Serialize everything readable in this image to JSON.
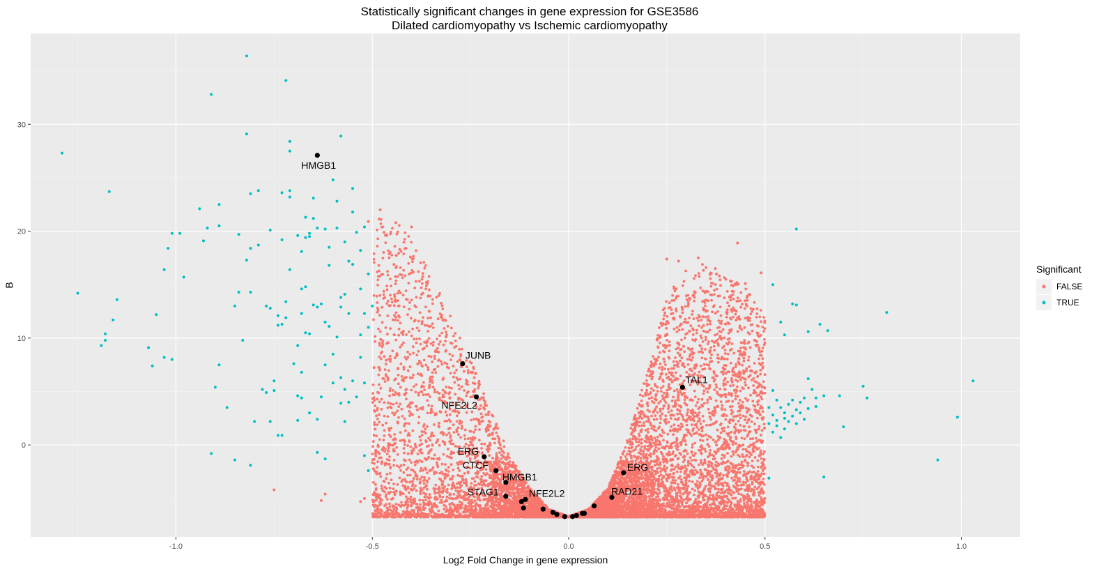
{
  "chart_data": {
    "type": "scatter",
    "title": "Statistically significant changes in gene expression for GSE3586",
    "subtitle": "Dilated cardiomyopathy vs Ischemic cardiomyopathy",
    "xlabel": "Log2 Fold Change in gene expression",
    "ylabel": "B",
    "xlim": [
      -1.37,
      1.15
    ],
    "ylim": [
      -8.6,
      38.5
    ],
    "x_ticks": [
      -1.0,
      -0.5,
      0.0,
      0.5,
      1.0
    ],
    "x_tick_labels": [
      "-1.0",
      "-0.5",
      "0.0",
      "0.5",
      "1.0"
    ],
    "y_ticks": [
      0,
      10,
      20,
      30
    ],
    "y_tick_labels": [
      "0",
      "10",
      "20",
      "30"
    ],
    "grid": true,
    "background": "#ebebeb",
    "legend": {
      "title": "Significant",
      "placement": "right",
      "entries": [
        {
          "label": "FALSE",
          "color": "#f8766d"
        },
        {
          "label": "TRUE",
          "color": "#00bfc4"
        }
      ]
    },
    "series": [
      {
        "name": "TRUE",
        "color": "#00bfc4",
        "points": [
          [
            -1.29,
            27.3
          ],
          [
            -1.25,
            14.2
          ],
          [
            -1.19,
            9.3
          ],
          [
            -1.18,
            10.4
          ],
          [
            -1.18,
            9.8
          ],
          [
            -1.17,
            23.7
          ],
          [
            -1.16,
            11.7
          ],
          [
            -1.15,
            13.6
          ],
          [
            -1.07,
            9.1
          ],
          [
            -1.06,
            7.4
          ],
          [
            -1.05,
            12.2
          ],
          [
            -1.03,
            16.4
          ],
          [
            -1.03,
            8.2
          ],
          [
            -1.02,
            18.4
          ],
          [
            -1.01,
            19.8
          ],
          [
            -1.01,
            8.0
          ],
          [
            -0.99,
            19.8
          ],
          [
            -0.98,
            15.7
          ],
          [
            -0.94,
            22.1
          ],
          [
            -0.93,
            19.1
          ],
          [
            -0.92,
            20.3
          ],
          [
            -0.91,
            32.8
          ],
          [
            -0.91,
            -0.8
          ],
          [
            -0.9,
            5.4
          ],
          [
            -0.89,
            22.5
          ],
          [
            -0.89,
            20.5
          ],
          [
            -0.89,
            7.5
          ],
          [
            -0.87,
            3.5
          ],
          [
            -0.85,
            13.0
          ],
          [
            -0.85,
            -1.4
          ],
          [
            -0.84,
            14.3
          ],
          [
            -0.84,
            19.7
          ],
          [
            -0.83,
            9.8
          ],
          [
            -0.82,
            17.3
          ],
          [
            -0.82,
            29.1
          ],
          [
            -0.81,
            23.5
          ],
          [
            -0.81,
            18.4
          ],
          [
            -0.81,
            14.3
          ],
          [
            -0.81,
            -1.9
          ],
          [
            -0.8,
            2.2
          ],
          [
            -0.79,
            18.7
          ],
          [
            -0.79,
            23.8
          ],
          [
            -0.78,
            5.2
          ],
          [
            -0.77,
            13.0
          ],
          [
            -0.77,
            4.9
          ],
          [
            -0.76,
            20.1
          ],
          [
            -0.76,
            12.8
          ],
          [
            -0.76,
            2.2
          ],
          [
            -0.75,
            6.0
          ],
          [
            -0.75,
            5.1
          ],
          [
            -0.74,
            12.1
          ],
          [
            -0.74,
            11.2
          ],
          [
            -0.74,
            0.9
          ],
          [
            -0.73,
            23.6
          ],
          [
            -0.73,
            19.2
          ],
          [
            -0.73,
            11.3
          ],
          [
            -0.73,
            0.9
          ],
          [
            -0.72,
            34.1
          ],
          [
            -0.72,
            13.4
          ],
          [
            -0.72,
            11.9
          ],
          [
            -0.71,
            27.5
          ],
          [
            -0.71,
            28.4
          ],
          [
            -0.71,
            23.8
          ],
          [
            -0.71,
            23.2
          ],
          [
            -0.71,
            16.4
          ],
          [
            -0.7,
            7.6
          ],
          [
            -0.69,
            19.6
          ],
          [
            -0.69,
            9.3
          ],
          [
            -0.69,
            4.6
          ],
          [
            -0.69,
            2.3
          ],
          [
            -0.68,
            14.6
          ],
          [
            -0.68,
            18.1
          ],
          [
            -0.68,
            12.3
          ],
          [
            -0.68,
            6.8
          ],
          [
            -0.68,
            4.4
          ],
          [
            -0.67,
            21.3
          ],
          [
            -0.67,
            19.4
          ],
          [
            -0.67,
            14.8
          ],
          [
            -0.67,
            10.5
          ],
          [
            -0.66,
            19.5
          ],
          [
            -0.66,
            10.4
          ],
          [
            -0.66,
            3.0
          ],
          [
            -0.65,
            23.1
          ],
          [
            -0.65,
            21.2
          ],
          [
            -0.65,
            13.1
          ],
          [
            -0.64,
            20.3
          ],
          [
            -0.64,
            2.4
          ],
          [
            -0.64,
            -0.7
          ],
          [
            -0.64,
            12.9
          ],
          [
            -0.63,
            4.5
          ],
          [
            -0.63,
            13.2
          ],
          [
            -0.62,
            11.5
          ],
          [
            -0.62,
            7.5
          ],
          [
            -0.62,
            20.2
          ],
          [
            -0.62,
            -1.3
          ],
          [
            -0.61,
            18.5
          ],
          [
            -0.61,
            16.8
          ],
          [
            -0.61,
            11.1
          ],
          [
            -0.6,
            8.5
          ],
          [
            -0.6,
            5.8
          ],
          [
            -0.59,
            22.8
          ],
          [
            -0.59,
            10.1
          ],
          [
            -0.59,
            20.3
          ],
          [
            -0.58,
            3.9
          ],
          [
            -0.58,
            12.9
          ],
          [
            -0.58,
            6.3
          ],
          [
            -0.58,
            13.8
          ],
          [
            -0.57,
            5.2
          ],
          [
            -0.57,
            19.0
          ],
          [
            -0.57,
            14.1
          ],
          [
            -0.57,
            2.2
          ],
          [
            -0.56,
            4.0
          ],
          [
            -0.56,
            12.3
          ],
          [
            -0.56,
            17.2
          ],
          [
            -0.55,
            21.8
          ],
          [
            -0.55,
            16.9
          ],
          [
            -0.55,
            6.0
          ],
          [
            -0.55,
            24.0
          ],
          [
            -0.54,
            4.5
          ],
          [
            -0.54,
            19.9
          ],
          [
            -0.53,
            10.3
          ],
          [
            -0.53,
            8.2
          ],
          [
            -0.53,
            14.6
          ],
          [
            -0.53,
            18.2
          ],
          [
            -0.52,
            12.3
          ],
          [
            -0.52,
            20.4
          ],
          [
            -0.52,
            5.8
          ],
          [
            -0.52,
            -1.0
          ],
          [
            -0.51,
            11.0
          ],
          [
            -0.51,
            16.0
          ],
          [
            -0.51,
            -2.4
          ],
          [
            -0.5,
            13.0
          ],
          [
            -0.6,
            24.8
          ],
          [
            -0.58,
            28.9
          ],
          [
            -0.82,
            36.4
          ],
          [
            -0.66,
            19.8
          ],
          [
            0.51,
            3.5
          ],
          [
            0.51,
            2.0
          ],
          [
            0.51,
            -3.1
          ],
          [
            0.52,
            15.0
          ],
          [
            0.52,
            5.1
          ],
          [
            0.52,
            2.8
          ],
          [
            0.52,
            1.2
          ],
          [
            0.53,
            4.2
          ],
          [
            0.53,
            2.3
          ],
          [
            0.54,
            3.5
          ],
          [
            0.54,
            11.5
          ],
          [
            0.54,
            0.7
          ],
          [
            0.55,
            2.5
          ],
          [
            0.55,
            3.0
          ],
          [
            0.55,
            10.3
          ],
          [
            0.56,
            2.2
          ],
          [
            0.56,
            3.8
          ],
          [
            0.57,
            13.2
          ],
          [
            0.57,
            2.7
          ],
          [
            0.57,
            4.2
          ],
          [
            0.58,
            2.0
          ],
          [
            0.58,
            3.3
          ],
          [
            0.58,
            20.2
          ],
          [
            0.58,
            13.1
          ],
          [
            0.59,
            3.0
          ],
          [
            0.59,
            4.0
          ],
          [
            0.6,
            4.4
          ],
          [
            0.6,
            2.4
          ],
          [
            0.61,
            6.2
          ],
          [
            0.61,
            10.6
          ],
          [
            0.61,
            3.4
          ],
          [
            0.62,
            5.2
          ],
          [
            0.63,
            4.4
          ],
          [
            0.63,
            3.6
          ],
          [
            0.64,
            11.3
          ],
          [
            0.65,
            4.6
          ],
          [
            0.65,
            -3.0
          ],
          [
            0.66,
            10.7
          ],
          [
            0.69,
            4.6
          ],
          [
            0.7,
            1.7
          ],
          [
            0.75,
            5.5
          ],
          [
            0.76,
            4.4
          ],
          [
            0.81,
            12.4
          ],
          [
            0.94,
            -1.4
          ],
          [
            0.99,
            2.6
          ],
          [
            1.03,
            6.0
          ],
          [
            0.55,
            1.5
          ],
          [
            0.53,
            1.8
          ]
        ]
      }
    ],
    "false_cloud": {
      "name": "FALSE",
      "color": "#f8766d",
      "description": "dense V-shaped cloud of non-significant genes between x = -0.5 and 0.5",
      "envelope_left": [
        [
          -0.5,
          21.0
        ],
        [
          -0.45,
          21.5
        ],
        [
          -0.4,
          19.5
        ],
        [
          -0.35,
          16.0
        ],
        [
          -0.3,
          12.0
        ],
        [
          -0.25,
          8.0
        ],
        [
          -0.2,
          3.5
        ],
        [
          -0.15,
          -1.0
        ],
        [
          -0.1,
          -4.0
        ],
        [
          -0.05,
          -6.0
        ],
        [
          0.0,
          -6.7
        ]
      ],
      "envelope_right": [
        [
          0.0,
          -6.7
        ],
        [
          0.05,
          -6.0
        ],
        [
          0.1,
          -4.0
        ],
        [
          0.15,
          0.5
        ],
        [
          0.2,
          7.0
        ],
        [
          0.25,
          14.0
        ],
        [
          0.3,
          16.5
        ],
        [
          0.35,
          17.0
        ],
        [
          0.4,
          16.0
        ],
        [
          0.45,
          15.0
        ],
        [
          0.5,
          12.0
        ]
      ],
      "outliers": [
        [
          -0.75,
          -4.2
        ],
        [
          -0.63,
          -5.2
        ],
        [
          -0.53,
          -5.3
        ],
        [
          -0.48,
          22.0
        ],
        [
          -0.44,
          20.8
        ],
        [
          -0.4,
          20.4
        ],
        [
          -0.43,
          18.3
        ],
        [
          -0.36,
          15.1
        ],
        [
          0.43,
          18.9
        ],
        [
          0.49,
          16.1
        ],
        [
          0.48,
          -0.4
        ],
        [
          0.49,
          7.5
        ],
        [
          0.33,
          17.5
        ],
        [
          0.28,
          17.2
        ],
        [
          0.25,
          17.4
        ],
        [
          0.35,
          16.6
        ],
        [
          -0.62,
          -4.6
        ],
        [
          -0.52,
          -5.0
        ],
        [
          -0.51,
          20.9
        ],
        [
          -0.47,
          19.9
        ],
        [
          0.45,
          15.1
        ],
        [
          0.47,
          12.7
        ]
      ]
    },
    "highlighted": [
      {
        "label": "HMGB1",
        "x": -0.64,
        "y": 27.1
      },
      {
        "label": "JUNB",
        "x": -0.27,
        "y": 7.6
      },
      {
        "label": "NFE2L2",
        "x": -0.235,
        "y": 4.5
      },
      {
        "label": "ERG",
        "x": -0.215,
        "y": -1.1
      },
      {
        "label": "CTCF",
        "x": -0.185,
        "y": -2.4
      },
      {
        "label": "HMGB1",
        "x": -0.16,
        "y": -3.5
      },
      {
        "label": "STAG1",
        "x": -0.16,
        "y": -4.8
      },
      {
        "label": "NFE2L2",
        "x": -0.11,
        "y": -5.1
      },
      {
        "label": "TAL1",
        "x": 0.29,
        "y": 5.4
      },
      {
        "label": "ERG",
        "x": 0.14,
        "y": -2.6
      },
      {
        "label": "RAD21",
        "x": 0.11,
        "y": -4.9
      }
    ],
    "highlighted_unlabeled": [
      [
        -0.12,
        -5.3
      ],
      [
        -0.115,
        -5.9
      ],
      [
        -0.065,
        -6.0
      ],
      [
        -0.04,
        -6.3
      ],
      [
        -0.03,
        -6.5
      ],
      [
        -0.01,
        -6.7
      ],
      [
        0.01,
        -6.7
      ],
      [
        0.02,
        -6.6
      ],
      [
        0.035,
        -6.4
      ],
      [
        0.04,
        -6.4
      ],
      [
        0.065,
        -5.7
      ]
    ]
  }
}
